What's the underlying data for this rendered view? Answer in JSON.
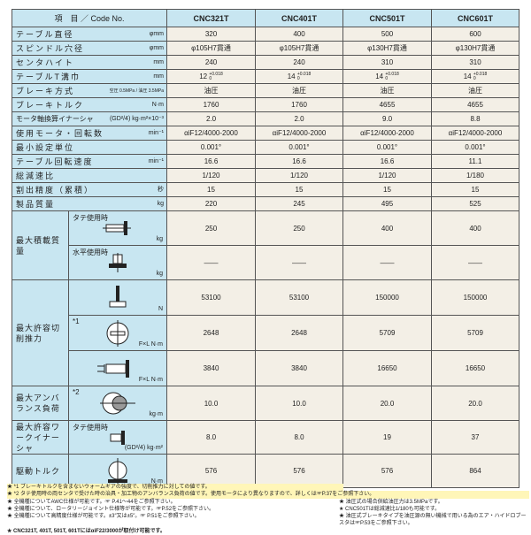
{
  "header": {
    "item_label": "項　目 ／ Code No.",
    "models": [
      "CNC321T",
      "CNC401T",
      "CNC501T",
      "CNC601T"
    ]
  },
  "rows": [
    {
      "label": "テーブル直径",
      "unit": "φmm",
      "values": [
        "320",
        "400",
        "500",
        "600"
      ]
    },
    {
      "label": "スピンドル穴径",
      "unit": "φmm",
      "values": [
        "φ105H7貫通",
        "φ105H7貫通",
        "φ130H7貫通",
        "φ130H7貫通"
      ]
    },
    {
      "label": "センタハイト",
      "unit": "mm",
      "values": [
        "240",
        "240",
        "310",
        "310"
      ]
    },
    {
      "label": "テーブルT溝巾",
      "unit": "mm",
      "values": [
        "12",
        "14",
        "14",
        "14"
      ],
      "tol_upper": "+0.018",
      "tol_lower": "0"
    },
    {
      "label": "ブレーキ方式",
      "unit": "空圧 0.5MPa / 油圧 3.5MPa",
      "values": [
        "油圧",
        "油圧",
        "油圧",
        "油圧"
      ]
    },
    {
      "label": "ブレーキトルク",
      "unit": "N·m",
      "values": [
        "1760",
        "1760",
        "4655",
        "4655"
      ]
    },
    {
      "label": "モータ軸換算イナーシャ",
      "unit": "(GD²/4) kg·m²×10⁻³",
      "values": [
        "2.0",
        "2.0",
        "9.0",
        "8.8"
      ]
    },
    {
      "label": "使用モータ・回転数",
      "unit": "min⁻¹",
      "values": [
        "αiF12/4000-2000",
        "αiF12/4000-2000",
        "αiF12/4000-2000",
        "αiF12/4000-2000"
      ]
    },
    {
      "label": "最小設定単位",
      "unit": "",
      "values": [
        "0.001°",
        "0.001°",
        "0.001°",
        "0.001°"
      ]
    },
    {
      "label": "テーブル回転速度",
      "unit": "min⁻¹",
      "values": [
        "16.6",
        "16.6",
        "16.6",
        "11.1"
      ]
    },
    {
      "label": "総減速比",
      "unit": "",
      "values": [
        "1/120",
        "1/120",
        "1/120",
        "1/180"
      ]
    },
    {
      "label": "割出精度（累積）",
      "unit": "秒",
      "values": [
        "15",
        "15",
        "15",
        "15"
      ]
    },
    {
      "label": "製品質量",
      "unit": "kg",
      "values": [
        "220",
        "245",
        "495",
        "525"
      ]
    }
  ],
  "load": {
    "group": "最大積載質量",
    "vertical": {
      "label": "タテ使用時",
      "unit": "kg",
      "values": [
        "250",
        "250",
        "400",
        "400"
      ]
    },
    "horizontal": {
      "label": "水平使用時",
      "unit": "kg",
      "values": [
        "——",
        "——",
        "——",
        "——"
      ]
    }
  },
  "thrust": {
    "group": "最大許容切削推力",
    "r1": {
      "unit": "N",
      "values": [
        "53100",
        "53100",
        "150000",
        "150000"
      ]
    },
    "r2": {
      "mark": "*1",
      "unit": "F×L N·m",
      "values": [
        "2648",
        "2648",
        "5709",
        "5709"
      ]
    },
    "r3": {
      "unit": "F×L N·m",
      "values": [
        "3840",
        "3840",
        "16650",
        "16650"
      ]
    }
  },
  "unbalance": {
    "group": "最大アンバランス負荷",
    "mark": "*2",
    "unit": "kg·m",
    "values": [
      "10.0",
      "10.0",
      "20.0",
      "20.0"
    ]
  },
  "inertia": {
    "group": "最大許容ワークイナーシャ",
    "label": "タテ使用時",
    "unit": "(GD²/4) kg·m²",
    "values": [
      "8.0",
      "8.0",
      "19",
      "37"
    ]
  },
  "torque": {
    "group": "駆動トルク",
    "unit": "N·m",
    "values": [
      "576",
      "576",
      "576",
      "864"
    ]
  },
  "notes": {
    "n1": "★ *1 ブレーキトルクを含まないウォームギアの強度で、切削推力に対しての値です。",
    "n2": "★ *2 タテ使用時の両センタで受けた時の治具・加工物のアンバランス負荷の値です。使用モータにより異なりますので、詳しくは☞P.37をご参照下さい。",
    "n3": "★ 全機種についてAWC仕様が可能です。☞ P.41～44をご参照下さい。",
    "n4": "★ 油圧式の場合供給油圧力は3.5MPaです。",
    "n5": "★ 全機種について、ロータリージョイント仕様等が可能です。☞P.52をご参照下さい。",
    "n6": "★ CNC501Tは総減速比1/180も可能です。",
    "n7": "★ 全機種について高精度仕様が可能です。±3″又は±5″。☞ P.51をご参照下さい。",
    "n8": "★ 油圧式ブレーキタイプを油圧源の無い機械で用いる為のエア・ハイドロブースタは☞P.53をご参照下さい。",
    "n9": "★ CNC321T, 401T, 501T, 601TにはαiF22/3000が取付け可能です。"
  },
  "colors": {
    "label_bg": "#c8e6f1",
    "value_bg": "#f3efe6",
    "note_highlight": "#fff6b8"
  }
}
